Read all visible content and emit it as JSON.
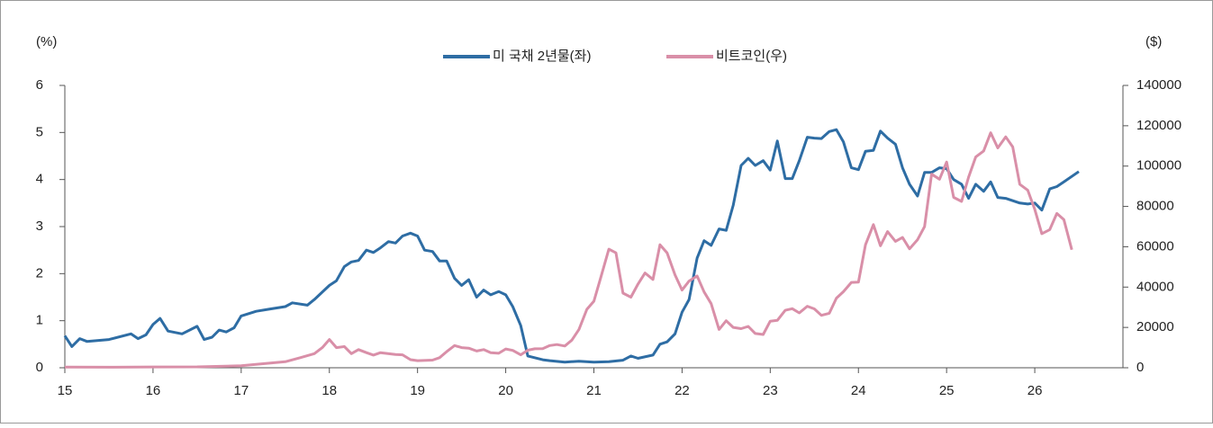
{
  "chart_data": {
    "type": "line",
    "y_label": "(%)",
    "y2_label": "($)",
    "xlim": [
      15,
      27
    ],
    "xticks": [
      15,
      16,
      17,
      18,
      19,
      20,
      21,
      22,
      23,
      24,
      25,
      26
    ],
    "ylim": [
      0,
      6
    ],
    "yticks": [
      0,
      1,
      2,
      3,
      4,
      5,
      6
    ],
    "y2lim": [
      0,
      140000
    ],
    "y2ticks": [
      0,
      20000,
      40000,
      60000,
      80000,
      100000,
      120000,
      140000
    ],
    "legend": "top",
    "series": [
      {
        "name": "미 국채 2년물(좌)",
        "color": "#2e6da4",
        "axis": "y",
        "x": [
          15,
          15.08,
          15.17,
          15.25,
          15.5,
          15.75,
          15.83,
          15.92,
          16,
          16.08,
          16.17,
          16.33,
          16.5,
          16.58,
          16.67,
          16.75,
          16.83,
          16.92,
          17,
          17.17,
          17.33,
          17.5,
          17.58,
          17.75,
          17.83,
          18,
          18.08,
          18.17,
          18.25,
          18.33,
          18.42,
          18.5,
          18.58,
          18.67,
          18.75,
          18.83,
          18.92,
          19,
          19.08,
          19.17,
          19.25,
          19.33,
          19.42,
          19.5,
          19.58,
          19.67,
          19.75,
          19.83,
          19.92,
          20,
          20.08,
          20.17,
          20.25,
          20.42,
          20.5,
          20.67,
          20.83,
          21,
          21.17,
          21.33,
          21.42,
          21.5,
          21.67,
          21.75,
          21.83,
          21.92,
          22,
          22.08,
          22.17,
          22.25,
          22.33,
          22.42,
          22.5,
          22.58,
          22.67,
          22.75,
          22.83,
          22.92,
          23,
          23.08,
          23.17,
          23.25,
          23.33,
          23.42,
          23.5,
          23.58,
          23.67,
          23.75,
          23.83,
          23.92,
          24,
          24.08,
          24.17,
          24.25,
          24.33,
          24.42,
          24.5,
          24.58,
          24.67,
          24.75,
          24.83,
          24.92,
          25,
          25.08,
          25.17,
          25.25,
          25.33,
          25.42,
          25.5,
          25.58,
          25.67,
          25.75,
          25.83,
          25.92,
          26,
          26.08,
          26.17,
          26.25,
          26.33,
          26.5
        ],
        "values": [
          0.68,
          0.45,
          0.62,
          0.56,
          0.6,
          0.72,
          0.62,
          0.7,
          0.92,
          1.05,
          0.78,
          0.72,
          0.88,
          0.6,
          0.65,
          0.8,
          0.76,
          0.85,
          1.1,
          1.2,
          1.25,
          1.3,
          1.38,
          1.33,
          1.45,
          1.75,
          1.85,
          2.15,
          2.25,
          2.28,
          2.5,
          2.45,
          2.55,
          2.68,
          2.65,
          2.8,
          2.86,
          2.8,
          2.5,
          2.47,
          2.27,
          2.27,
          1.9,
          1.75,
          1.87,
          1.5,
          1.65,
          1.55,
          1.62,
          1.55,
          1.3,
          0.9,
          0.25,
          0.17,
          0.15,
          0.12,
          0.14,
          0.12,
          0.13,
          0.16,
          0.25,
          0.2,
          0.27,
          0.5,
          0.55,
          0.72,
          1.18,
          1.45,
          2.33,
          2.7,
          2.6,
          2.95,
          2.92,
          3.45,
          4.3,
          4.45,
          4.3,
          4.4,
          4.2,
          4.82,
          4.02,
          4.02,
          4.4,
          4.9,
          4.88,
          4.87,
          5.02,
          5.06,
          4.8,
          4.25,
          4.21,
          4.6,
          4.62,
          5.03,
          4.88,
          4.75,
          4.25,
          3.9,
          3.65,
          4.15,
          4.15,
          4.25,
          4.23,
          4,
          3.9,
          3.6,
          3.9,
          3.75,
          3.95,
          3.62,
          3.6,
          3.55,
          3.5,
          3.48,
          3.5,
          3.35,
          3.8,
          3.85,
          3.95,
          4.17
        ]
      },
      {
        "name": "비트코인(우)",
        "color": "#d98fa8",
        "axis": "y2",
        "x": [
          15,
          15.5,
          16,
          16.5,
          17,
          17.25,
          17.5,
          17.67,
          17.83,
          17.92,
          18,
          18.08,
          18.17,
          18.25,
          18.33,
          18.42,
          18.5,
          18.58,
          18.75,
          18.83,
          18.92,
          19,
          19.17,
          19.25,
          19.33,
          19.42,
          19.5,
          19.58,
          19.67,
          19.75,
          19.83,
          19.92,
          20,
          20.08,
          20.17,
          20.25,
          20.33,
          20.42,
          20.5,
          20.58,
          20.67,
          20.75,
          20.83,
          20.92,
          21,
          21.08,
          21.17,
          21.25,
          21.33,
          21.42,
          21.5,
          21.58,
          21.67,
          21.75,
          21.83,
          21.92,
          22,
          22.08,
          22.17,
          22.25,
          22.33,
          22.42,
          22.5,
          22.58,
          22.67,
          22.75,
          22.83,
          22.92,
          23,
          23.08,
          23.17,
          23.25,
          23.33,
          23.42,
          23.5,
          23.58,
          23.67,
          23.75,
          23.83,
          23.92,
          24,
          24.08,
          24.17,
          24.25,
          24.33,
          24.42,
          24.5,
          24.58,
          24.67,
          24.75,
          24.83,
          24.92,
          25,
          25.08,
          25.17,
          25.25,
          25.33,
          25.42,
          25.5,
          25.58,
          25.67,
          25.75,
          25.83,
          25.92,
          26,
          26.08,
          26.17,
          26.25,
          26.33,
          26.42
        ],
        "values": [
          300,
          250,
          400,
          450,
          1000,
          2000,
          3000,
          5000,
          7000,
          10000,
          14000,
          10000,
          10500,
          7000,
          9000,
          7500,
          6300,
          7500,
          6600,
          6400,
          4000,
          3500,
          3800,
          5000,
          8000,
          11000,
          10000,
          9700,
          8300,
          9000,
          7500,
          7200,
          9300,
          8600,
          6400,
          8700,
          9400,
          9500,
          11000,
          11500,
          10800,
          13700,
          19000,
          29000,
          33000,
          45000,
          58800,
          57000,
          37000,
          35000,
          41500,
          47000,
          43800,
          61000,
          57000,
          46000,
          38500,
          43000,
          45500,
          37600,
          31800,
          19000,
          23300,
          20000,
          19400,
          20500,
          17000,
          16500,
          23100,
          23500,
          28500,
          29300,
          27200,
          30500,
          29200,
          26000,
          27000,
          34500,
          37700,
          42300,
          42500,
          61000,
          71000,
          60500,
          67500,
          62700,
          64600,
          59000,
          63500,
          70000,
          96000,
          93500,
          102000,
          84500,
          82500,
          94500,
          104500,
          107500,
          116500,
          109000,
          114500,
          109500,
          91000,
          88000,
          78500,
          66500,
          68500,
          76500,
          73500,
          58500
        ]
      }
    ]
  }
}
